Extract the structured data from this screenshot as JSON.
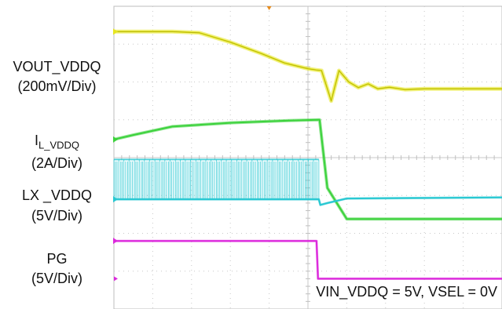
{
  "chart_data": {
    "type": "line",
    "title": "",
    "xlabel": "",
    "ylabel": "",
    "grid": true,
    "grid_divisions": {
      "x": 10,
      "y": 8
    },
    "x_units": "div",
    "xlim": [
      0,
      10
    ],
    "y_units": "div",
    "ylim": [
      0,
      8
    ],
    "series": [
      {
        "name": "VOUT_VDDQ",
        "scale": "200mV/Div",
        "color": "#e6e61e",
        "x": [
          0,
          0.8,
          1.5,
          2.2,
          3.0,
          3.8,
          4.4,
          5.0,
          5.2,
          5.35,
          5.6,
          5.8,
          6.05,
          6.3,
          6.55,
          6.8,
          7.1,
          7.5,
          8.0,
          9.0,
          10.0
        ],
        "y": [
          7.33,
          7.33,
          7.33,
          7.3,
          7.05,
          6.75,
          6.5,
          6.35,
          6.32,
          6.3,
          5.5,
          6.3,
          6.0,
          5.85,
          5.95,
          5.82,
          5.86,
          5.8,
          5.82,
          5.82,
          5.82
        ]
      },
      {
        "name": "I_L_VDDQ",
        "scale": "2A/Div",
        "color": "#3cd23c",
        "x": [
          0,
          0.5,
          1.5,
          3.0,
          4.5,
          5.28,
          5.3,
          5.5,
          6.0,
          10.0
        ],
        "y": [
          4.48,
          4.6,
          4.82,
          4.92,
          4.98,
          5.0,
          5.0,
          3.2,
          2.38,
          2.38
        ]
      },
      {
        "name": "LX _VDDQ",
        "scale": "5V/Div",
        "color": "#28c8d2",
        "x": [
          0,
          5.28,
          5.32,
          5.5,
          6.0,
          10.0
        ],
        "y": [
          2.9,
          2.9,
          2.75,
          2.8,
          2.92,
          2.95
        ]
      },
      {
        "name": "PG",
        "scale": "5V/Div",
        "color": "#dc28dc",
        "x": [
          0,
          5.22,
          5.26,
          10.0
        ],
        "y": [
          1.8,
          1.8,
          0.8,
          0.8
        ]
      }
    ],
    "switching": {
      "x_start": 0,
      "x_end": 5.28,
      "y_low": 2.9,
      "y_high": 3.95
    },
    "markers": {
      "ground_color": "#dc28dc",
      "trigger_color": "#e68c1e"
    },
    "annotations": [
      "VIN_VDDQ = 5V, VSEL = 0V"
    ]
  },
  "labels": {
    "vout_name": "VOUT_VDDQ",
    "vout_scale": "(200mV/Div)",
    "il_main": "I",
    "il_sub": "L_VDDQ",
    "il_scale": "(2A/Div)",
    "lx_name": "LX _VDDQ",
    "lx_scale": "(5V/Div)",
    "pg_name": "PG",
    "pg_scale": "(5V/Div)"
  },
  "note": "VIN_VDDQ = 5V, VSEL = 0V"
}
